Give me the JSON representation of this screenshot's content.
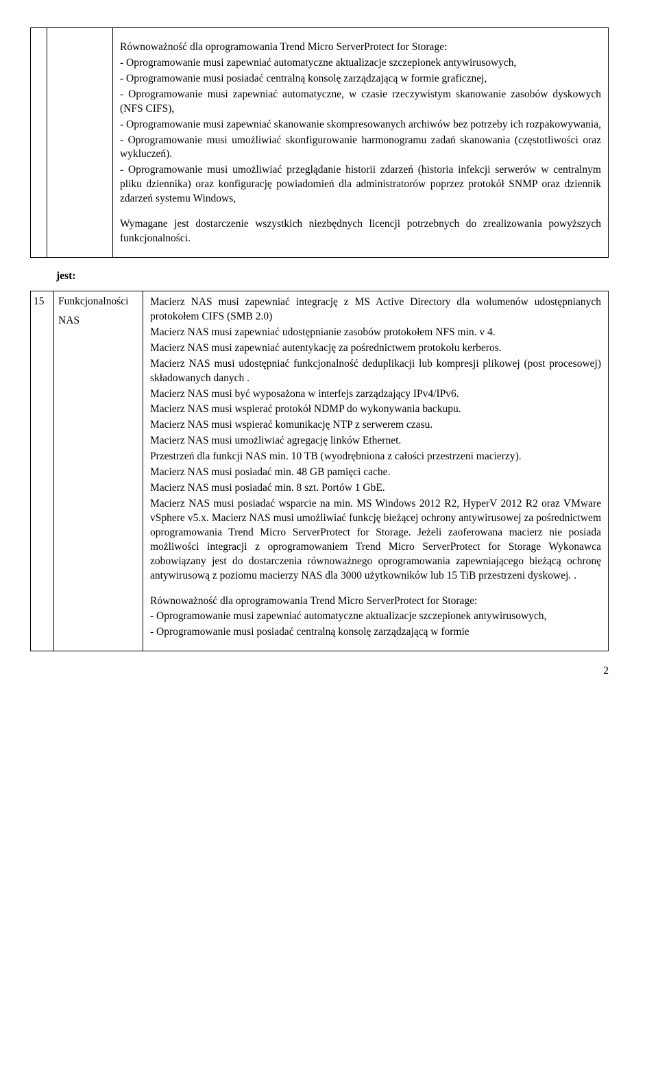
{
  "top": {
    "p1": "Równoważność dla oprogramowania Trend Micro ServerProtect for Storage:",
    "p2": "- Oprogramowanie musi zapewniać automatyczne aktualizacje szczepionek antywirusowych,",
    "p3": "- Oprogramowanie musi posiadać centralną konsolę zarządzającą w formie graficznej,",
    "p4": "- Oprogramowanie musi zapewniać automatyczne, w czasie rzeczywistym skanowanie zasobów dyskowych (NFS CIFS),",
    "p5": "- Oprogramowanie musi zapewniać skanowanie skompresowanych archiwów bez potrzeby ich rozpakowywania,",
    "p6": "- Oprogramowanie musi umożliwiać skonfigurowanie harmonogramu zadań skanowania (częstotliwości oraz wykluczeń).",
    "p7": "- Oprogramowanie musi umożliwiać przeglądanie historii zdarzeń (historia infekcji serwerów w centralnym pliku dziennika) oraz konfigurację powiadomień dla administratorów poprzez protokół SNMP oraz dziennik zdarzeń systemu Windows,",
    "p8": "Wymagane jest dostarczenie wszystkich niezbędnych licencji potrzebnych do zrealizowania powyższych funkcjonalności."
  },
  "jest": "jest:",
  "row": {
    "num": "15",
    "label1": "Funkcjonalności",
    "label2": "NAS"
  },
  "bottom": {
    "p1": "Macierz NAS musi zapewniać integrację z MS Active Directory dla wolumenów udostępnianych protokołem CIFS (SMB 2.0)",
    "p2": "Macierz NAS musi zapewniać udostępnianie zasobów protokołem NFS min. v 4.",
    "p3": "Macierz NAS musi zapewniać autentykację za pośrednictwem protokołu kerberos.",
    "p4": "Macierz NAS musi udostępniać funkcjonalność deduplikacji lub kompresji plikowej (post procesowej) składowanych danych .",
    "p5": "Macierz NAS musi być wyposażona w interfejs zarządzający IPv4/IPv6.",
    "p6": "Macierz NAS musi wspierać protokół NDMP do wykonywania backupu.",
    "p7": "Macierz NAS musi wspierać komunikację NTP z serwerem czasu.",
    "p8": "Macierz NAS musi umożliwiać agregację linków Ethernet.",
    "p9": "Przestrzeń dla funkcji NAS min. 10 TB (wyodrębniona z całości przestrzeni macierzy).",
    "p10": "Macierz NAS musi posiadać min. 48 GB pamięci cache.",
    "p11": "Macierz NAS musi posiadać min. 8 szt. Portów 1 GbE.",
    "p12": "Macierz NAS musi posiadać wsparcie na min. MS Windows 2012 R2, HyperV 2012 R2 oraz VMware vSphere v5.x. Macierz NAS musi umożliwiać funkcję bieżącej ochrony antywirusowej za pośrednictwem oprogramowania Trend Micro ServerProtect for Storage. Jeżeli zaoferowana macierz nie posiada możliwości integracji z oprogramowaniem Trend Micro ServerProtect  for Storage Wykonawca zobowiązany jest do dostarczenia równoważnego oprogramowania zapewniającego bieżącą ochronę antywirusową z poziomu macierzy NAS dla 3000 użytkowników lub 15 TiB przestrzeni dyskowej. .",
    "p13": "Równoważność dla oprogramowania Trend Micro ServerProtect for Storage:",
    "p14": "- Oprogramowanie musi zapewniać automatyczne aktualizacje szczepionek antywirusowych,",
    "p15": "- Oprogramowanie musi posiadać centralną konsolę zarządzającą w formie"
  },
  "pageNumber": "2"
}
